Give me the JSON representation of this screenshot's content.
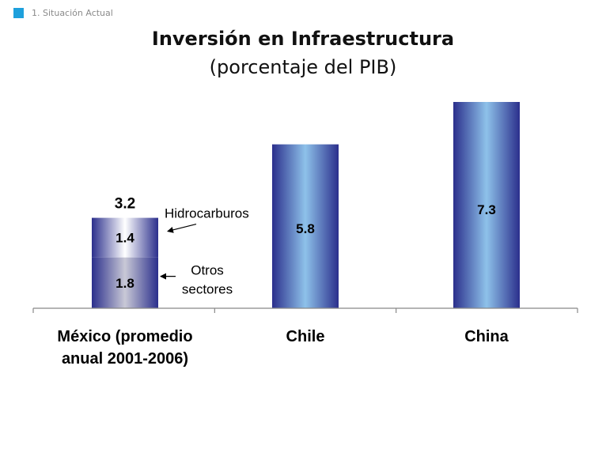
{
  "header": {
    "section_label": "1. Situación Actual"
  },
  "chart_data": {
    "type": "bar",
    "title": "Inversión en Infraestructura",
    "subtitle": "(porcentaje del PIB)",
    "categories": [
      "México (promedio anual 2001-2006)",
      "Chile",
      "China"
    ],
    "category_lines": [
      [
        "México (promedio",
        "anual 2001-2006)"
      ],
      [
        "Chile"
      ],
      [
        "China"
      ]
    ],
    "values": [
      3.2,
      5.8,
      7.3
    ],
    "value_labels": [
      "3.2",
      "5.8",
      "7.3"
    ],
    "stacked_first_bar": {
      "segments": [
        {
          "name": "Otros sectores",
          "name_lines": [
            "Otros",
            "sectores"
          ],
          "value": 1.8,
          "label": "1.8"
        },
        {
          "name": "Hidrocarburos",
          "name_lines": [
            "Hidrocarburos"
          ],
          "value": 1.4,
          "label": "1.4"
        }
      ],
      "total_label": "3.2"
    },
    "ylim": [
      0,
      7.3
    ],
    "grid": false,
    "colors": {
      "bar_dark": "#2b2f8c",
      "bar_light": "#8ec2ea",
      "mexico_top_light": "#ffffff",
      "mexico_bottom_light": "#c9c9d6"
    }
  }
}
